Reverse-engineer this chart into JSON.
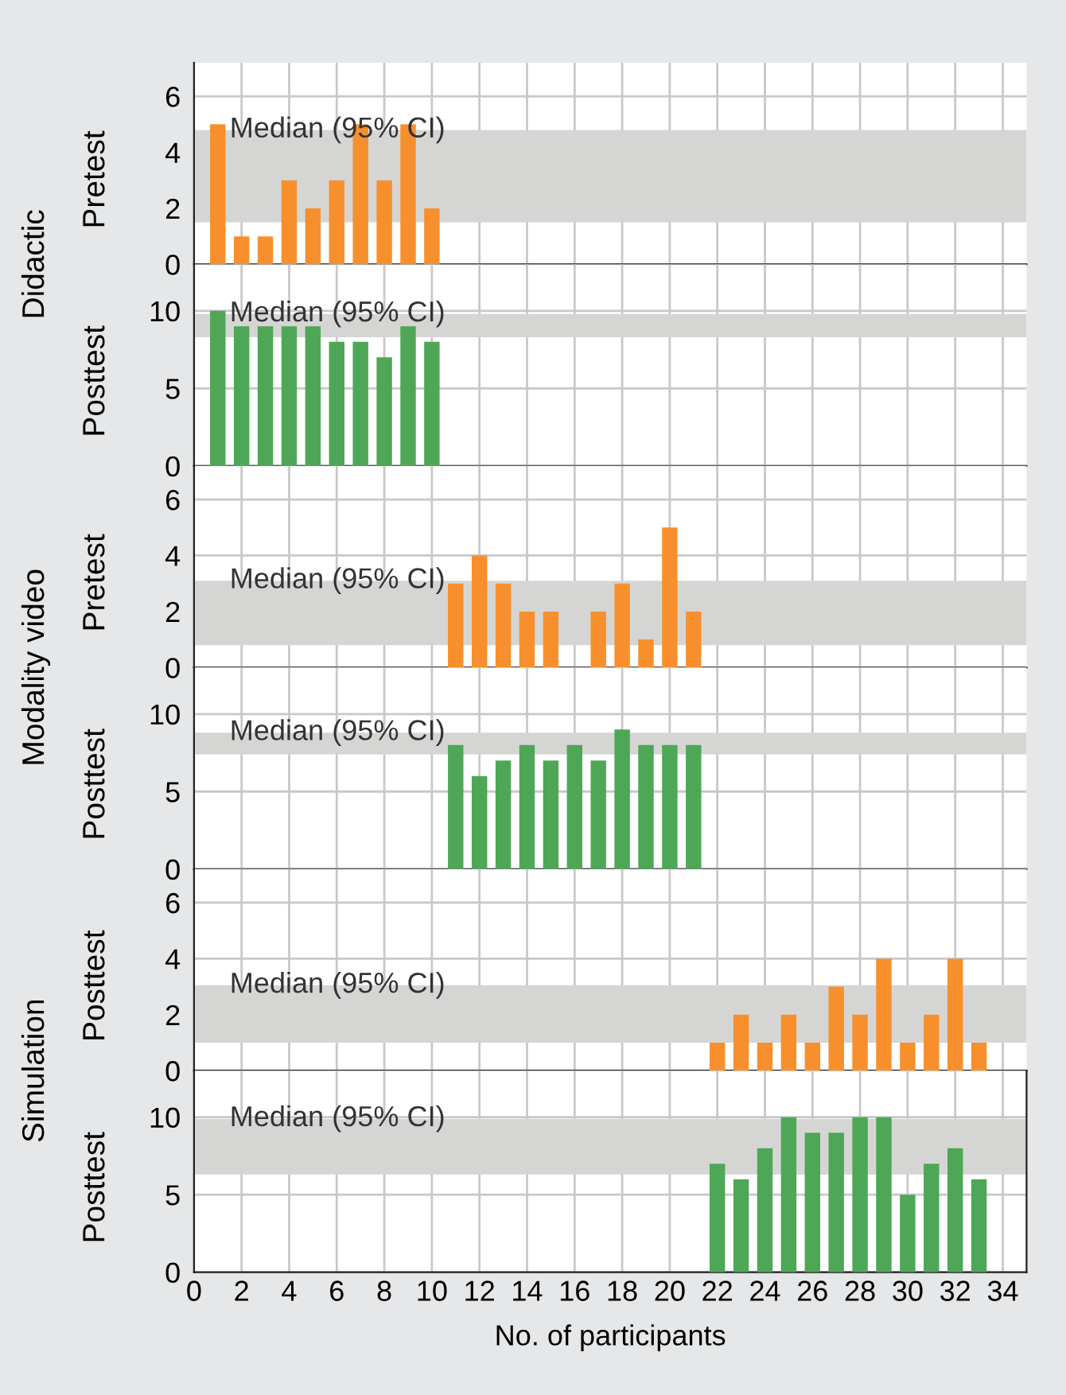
{
  "chart_data": [
    {
      "type": "bar",
      "ylabel": "Pretest",
      "annotations": [
        "Didactic"
      ],
      "x": [
        1,
        2,
        3,
        4,
        5,
        6,
        7,
        8,
        9,
        10
      ],
      "values": [
        5,
        1,
        1,
        3,
        2,
        3,
        5,
        3,
        5,
        2
      ],
      "color": "#f7902c",
      "xlim": [
        0,
        35
      ],
      "xticks": [
        0,
        2,
        4,
        6,
        8,
        10,
        12,
        14,
        16,
        18,
        20,
        22,
        24,
        26,
        28,
        30,
        32,
        34
      ],
      "ylim": [
        0,
        7.2
      ],
      "yticks": [
        0,
        2,
        4,
        6
      ],
      "grid": true,
      "tick_labels": "y",
      "bands": [
        {
          "axis": "y",
          "from": 1.5,
          "to": 4.8,
          "label": "Median (95% CI)",
          "color": "#d5d6d4"
        }
      ]
    },
    {
      "type": "bar",
      "ylabel": "Posttest",
      "x": [
        1,
        2,
        3,
        4,
        5,
        6,
        7,
        8,
        9,
        10
      ],
      "values": [
        10,
        9,
        9,
        9,
        9,
        8,
        8,
        7,
        9,
        8
      ],
      "color": "#4ea756",
      "xlim": [
        0,
        35
      ],
      "xticks": [
        0,
        2,
        4,
        6,
        8,
        10,
        12,
        14,
        16,
        18,
        20,
        22,
        24,
        26,
        28,
        30,
        32,
        34
      ],
      "ylim": [
        0,
        13
      ],
      "yticks": [
        0,
        5,
        10
      ],
      "grid": true,
      "tick_labels": "y",
      "bands": [
        {
          "axis": "y",
          "from": 8.3,
          "to": 9.8,
          "label": "Median (95% CI)",
          "color": "#d5d6d4"
        }
      ]
    },
    {
      "type": "bar",
      "ylabel": "Pretest",
      "annotations": [
        "Modality video"
      ],
      "x": [
        11,
        12,
        13,
        14,
        15,
        16,
        17,
        18,
        19,
        20,
        21
      ],
      "values": [
        3,
        4,
        3,
        2,
        2,
        0,
        2,
        3,
        1,
        5,
        2
      ],
      "color": "#f7902c",
      "xlim": [
        0,
        35
      ],
      "xticks": [
        0,
        2,
        4,
        6,
        8,
        10,
        12,
        14,
        16,
        18,
        20,
        22,
        24,
        26,
        28,
        30,
        32,
        34
      ],
      "ylim": [
        0,
        7.2
      ],
      "yticks": [
        0,
        2,
        4,
        6
      ],
      "grid": true,
      "tick_labels": "y",
      "bands": [
        {
          "axis": "y",
          "from": 0.8,
          "to": 3.1,
          "label": "Median (95% CI)",
          "color": "#d5d6d4"
        }
      ]
    },
    {
      "type": "bar",
      "ylabel": "Posttest",
      "x": [
        11,
        12,
        13,
        14,
        15,
        16,
        17,
        18,
        19,
        20,
        21
      ],
      "values": [
        8,
        6,
        7,
        8,
        7,
        8,
        7,
        9,
        8,
        8,
        8
      ],
      "color": "#4ea756",
      "xlim": [
        0,
        35
      ],
      "xticks": [
        0,
        2,
        4,
        6,
        8,
        10,
        12,
        14,
        16,
        18,
        20,
        22,
        24,
        26,
        28,
        30,
        32,
        34
      ],
      "ylim": [
        0,
        13
      ],
      "yticks": [
        0,
        5,
        10
      ],
      "grid": true,
      "tick_labels": "y",
      "bands": [
        {
          "axis": "y",
          "from": 7.4,
          "to": 8.8,
          "label": "Median (95% CI)",
          "color": "#d5d6d4"
        }
      ]
    },
    {
      "type": "bar",
      "ylabel": "Posttest",
      "annotations": [
        "Simulation"
      ],
      "x": [
        22,
        23,
        24,
        25,
        26,
        27,
        28,
        29,
        30,
        31,
        32,
        33
      ],
      "values": [
        1,
        2,
        1,
        2,
        1,
        3,
        2,
        4,
        1,
        2,
        4,
        1
      ],
      "color": "#f7902c",
      "xlim": [
        0,
        35
      ],
      "xticks": [
        0,
        2,
        4,
        6,
        8,
        10,
        12,
        14,
        16,
        18,
        20,
        22,
        24,
        26,
        28,
        30,
        32,
        34
      ],
      "ylim": [
        0,
        7.2
      ],
      "yticks": [
        0,
        2,
        4,
        6
      ],
      "grid": true,
      "tick_labels": "y",
      "bands": [
        {
          "axis": "y",
          "from": 1.0,
          "to": 3.05,
          "label": "Median (95% CI)",
          "color": "#d5d6d4"
        }
      ]
    },
    {
      "type": "bar",
      "ylabel": "Posttest",
      "xlabel": "No. of participants",
      "x": [
        22,
        23,
        24,
        25,
        26,
        27,
        28,
        29,
        30,
        31,
        32,
        33
      ],
      "values": [
        7,
        6,
        8,
        10,
        9,
        9,
        10,
        10,
        5,
        7,
        8,
        6
      ],
      "color": "#4ea756",
      "xlim": [
        0,
        35
      ],
      "xticks": [
        0,
        2,
        4,
        6,
        8,
        10,
        12,
        14,
        16,
        18,
        20,
        22,
        24,
        26,
        28,
        30,
        32,
        34
      ],
      "ylim": [
        0,
        13
      ],
      "yticks": [
        0,
        5,
        10
      ],
      "grid": true,
      "bands": [
        {
          "axis": "y",
          "from": 6.3,
          "to": 9.9,
          "label": "Median (95% CI)",
          "color": "#d5d6d4"
        }
      ]
    }
  ]
}
